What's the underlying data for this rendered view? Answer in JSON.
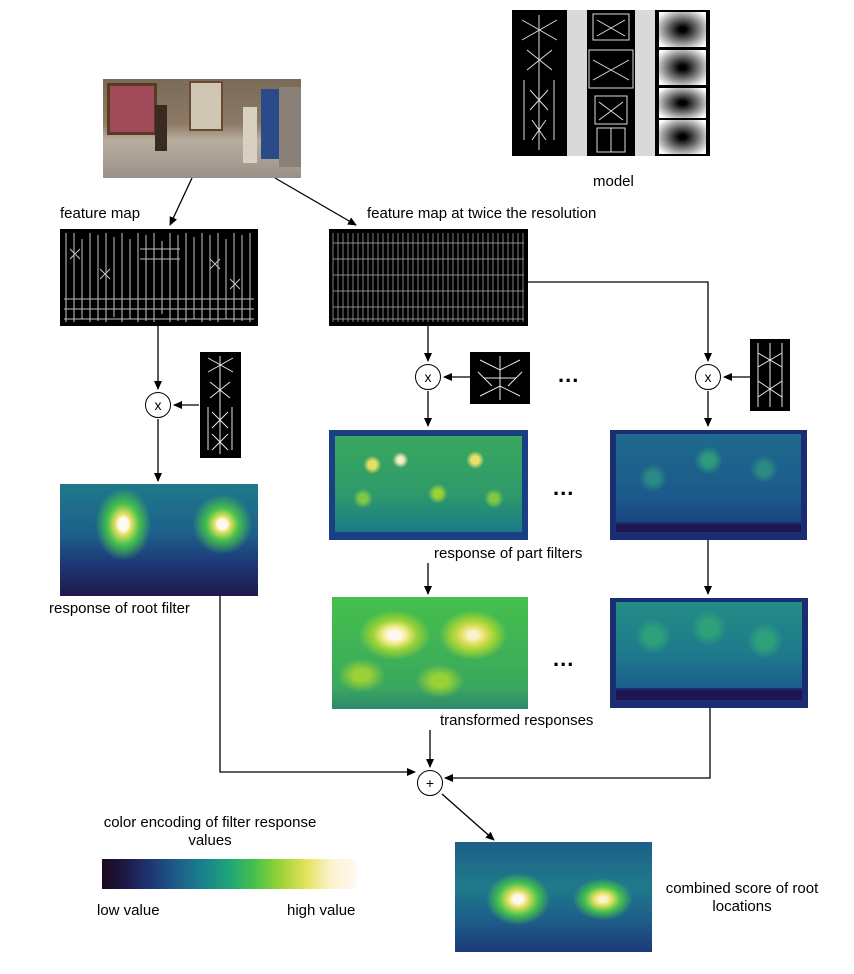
{
  "labels": {
    "model": "model",
    "feature_map": "feature map",
    "feature_map_2x": "feature map at twice the resolution",
    "response_part": "response of part filters",
    "response_root": "response of root filter",
    "transformed": "transformed responses",
    "color_encoding": "color encoding of filter response values",
    "low": "low value",
    "high": "high value",
    "combined": "combined score of root locations"
  },
  "operators": {
    "multiply": "x",
    "sum": "+",
    "ellipsis": "..."
  },
  "colorbar": [
    "#1a0a1e",
    "#1f1a4a",
    "#1d3a78",
    "#1d5f8a",
    "#19838c",
    "#1ea47a",
    "#46c04c",
    "#9ad236",
    "#e2e25a",
    "#fbf2cc",
    "#fff8f0"
  ],
  "photo_colors": [
    "#6b5a4a",
    "#a07c5c",
    "#c8b6a0",
    "#3e3a36",
    "#d24a6a",
    "#2a4a8a",
    "#9a9a9a",
    "#5c4a3a"
  ]
}
